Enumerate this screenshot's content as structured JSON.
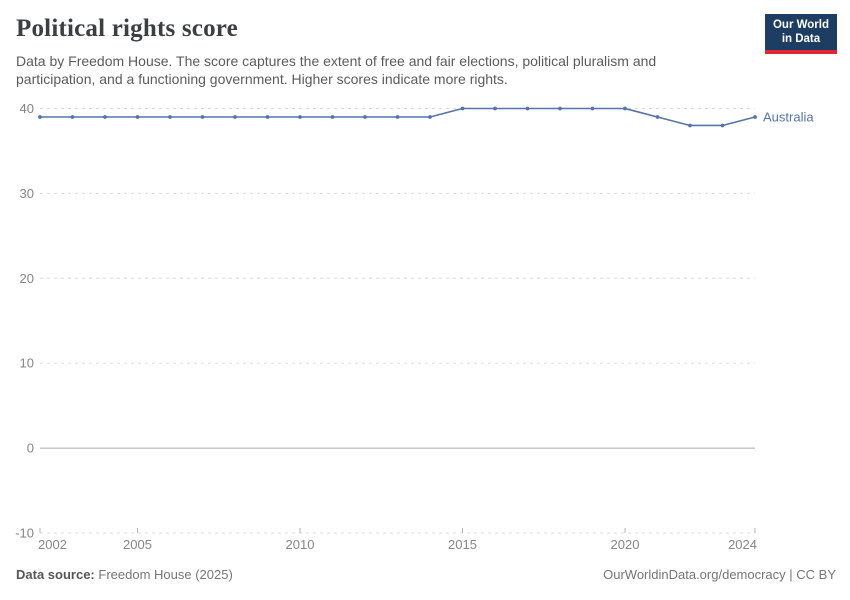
{
  "header": {
    "title": "Political rights score",
    "subtitle": "Data by Freedom House. The score captures the extent of free and fair elections, political pluralism and participation, and a functioning government. Higher scores indicate more rights."
  },
  "logo": {
    "line1": "Our World",
    "line2": "in Data",
    "bg_color": "#1d3d63",
    "accent_color": "#dc2a30"
  },
  "chart_data": {
    "type": "line",
    "title": "Political rights score",
    "xlabel": "",
    "ylabel": "",
    "x": [
      2002,
      2003,
      2004,
      2005,
      2006,
      2007,
      2008,
      2009,
      2010,
      2011,
      2012,
      2013,
      2014,
      2015,
      2016,
      2017,
      2018,
      2019,
      2020,
      2021,
      2022,
      2023,
      2024
    ],
    "series": [
      {
        "name": "Australia",
        "color": "#5674a8",
        "values": [
          39,
          39,
          39,
          39,
          39,
          39,
          39,
          39,
          39,
          39,
          39,
          39,
          39,
          40,
          40,
          40,
          40,
          40,
          40,
          39,
          38,
          38,
          39
        ]
      }
    ],
    "x_ticks": [
      2002,
      2005,
      2010,
      2015,
      2020,
      2024
    ],
    "y_ticks": [
      40,
      30,
      20,
      10,
      0,
      -10
    ],
    "xlim": [
      2002,
      2024
    ],
    "ylim": [
      -10,
      40
    ],
    "grid": "horizontal-dashed",
    "zero_line": "solid",
    "legend_position": "end-of-line-label",
    "gridline_color": "#dcdcdc",
    "zero_line_color": "#ababab",
    "tick_color": "#b5b5b5"
  },
  "footer": {
    "source_label": "Data source:",
    "source_value": "Freedom House (2025)",
    "link": "OurWorldinData.org/democracy | CC BY"
  }
}
